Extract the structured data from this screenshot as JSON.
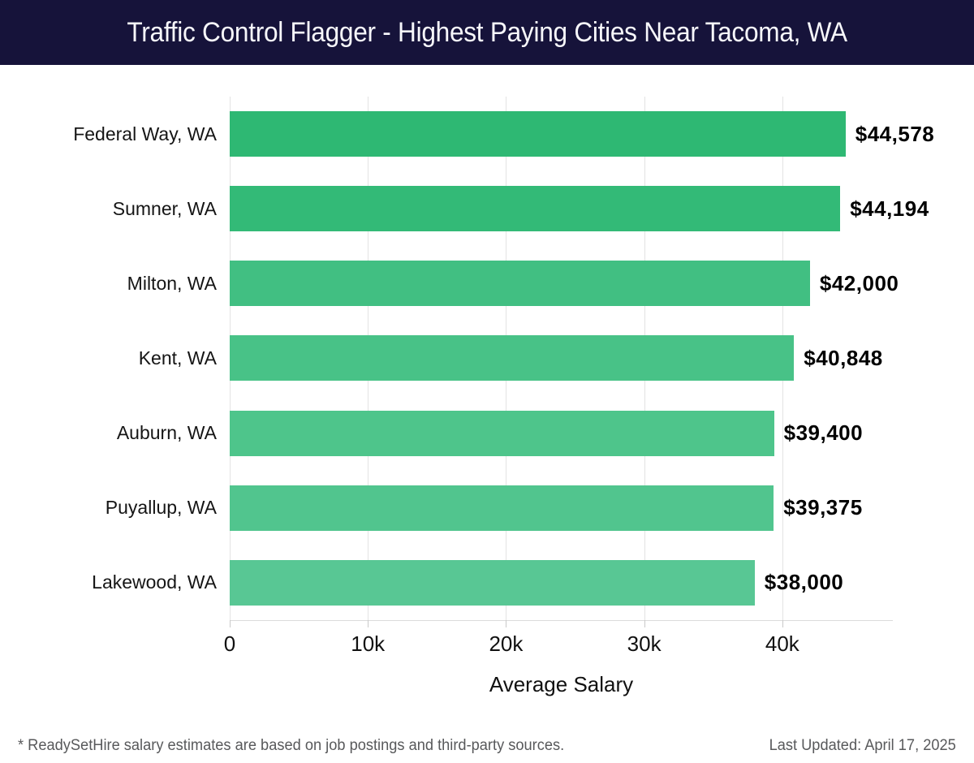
{
  "header": {
    "title": "Traffic Control Flagger - Highest Paying Cities Near Tacoma, WA"
  },
  "chart_data": {
    "type": "bar",
    "orientation": "horizontal",
    "title": "Traffic Control Flagger - Highest Paying Cities Near Tacoma, WA",
    "categories": [
      "Federal Way, WA",
      "Sumner, WA",
      "Milton, WA",
      "Kent, WA",
      "Auburn, WA",
      "Puyallup, WA",
      "Lakewood, WA"
    ],
    "values": [
      44578,
      44194,
      42000,
      40848,
      39400,
      39375,
      38000
    ],
    "value_labels": [
      "$44,578",
      "$44,194",
      "$42,000",
      "$40,848",
      "$39,400",
      "$39,375",
      "$38,000"
    ],
    "bar_colors": [
      "#2eb873",
      "#33ba77",
      "#41bf82",
      "#48c287",
      "#4ec58b",
      "#51c58e",
      "#58c794"
    ],
    "xlabel": "Average Salary",
    "ylabel": "",
    "xlim": [
      0,
      48000
    ],
    "x_ticks": [
      {
        "value": 0,
        "label": "0"
      },
      {
        "value": 10000,
        "label": "10k"
      },
      {
        "value": 20000,
        "label": "20k"
      },
      {
        "value": 30000,
        "label": "30k"
      },
      {
        "value": 40000,
        "label": "40k"
      }
    ],
    "grid": true,
    "legend": false
  },
  "footer": {
    "note": "* ReadySetHire salary estimates are based on job postings and third-party sources.",
    "last_updated": "Last Updated: April 17, 2025"
  },
  "colors": {
    "header_bg": "#16133a",
    "header_text": "#f7f7fb",
    "gridline": "#e3e3e3",
    "axis_line": "#dcdcdc",
    "tick_text": "#111111",
    "category_text": "#151515",
    "value_text": "#000000",
    "footer_text": "#58595b"
  }
}
